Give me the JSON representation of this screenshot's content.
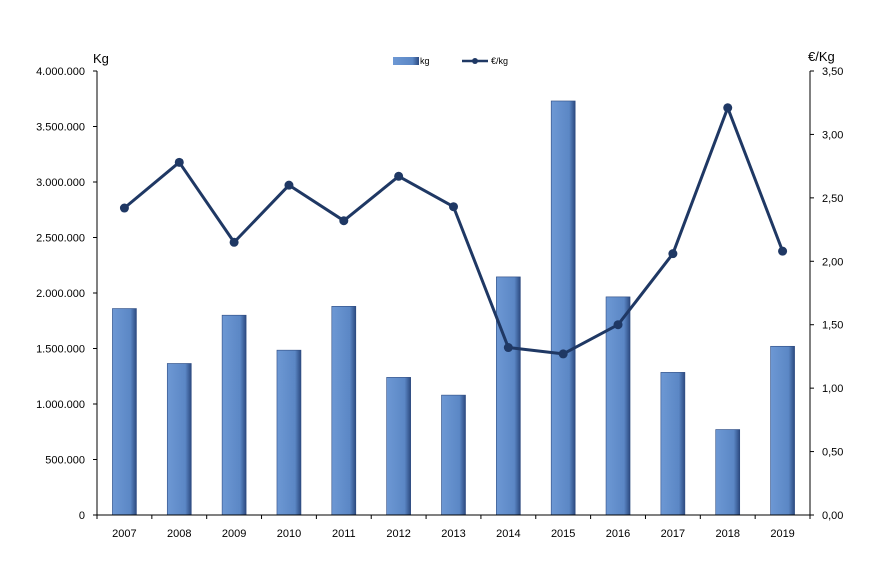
{
  "chart_data": {
    "type": "bar",
    "categories": [
      "2007",
      "2008",
      "2009",
      "2010",
      "2011",
      "2012",
      "2013",
      "2014",
      "2015",
      "2016",
      "2017",
      "2018",
      "2019"
    ],
    "series": [
      {
        "name": "kg",
        "type": "bar",
        "axis": "left",
        "values": [
          1860000,
          1365000,
          1800000,
          1485000,
          1880000,
          1240000,
          1080000,
          2145000,
          3730000,
          1965000,
          1285000,
          770000,
          1520000
        ]
      },
      {
        "name": "€/kg",
        "type": "line",
        "axis": "right",
        "values": [
          2.42,
          2.78,
          2.15,
          2.6,
          2.32,
          2.67,
          2.43,
          1.32,
          1.27,
          1.5,
          2.06,
          3.21,
          2.08
        ]
      }
    ],
    "y_left": {
      "label": "Kg",
      "range": [
        0,
        4000000
      ],
      "ticks": [
        "0",
        "500.000",
        "1.000.000",
        "1.500.000",
        "2.000.000",
        "2.500.000",
        "3.000.000",
        "3.500.000",
        "4.000.000"
      ]
    },
    "y_right": {
      "label": "€/Kg",
      "range": [
        0,
        3.5
      ],
      "ticks": [
        "0,00",
        "0,50",
        "1,00",
        "1,50",
        "2,00",
        "2,50",
        "3,00",
        "3,50"
      ]
    },
    "legend": {
      "position": "top-center"
    },
    "grid": false,
    "colors": {
      "bar": "#5b87c5",
      "bar_dark": "#2c4a80",
      "line": "#1f3864"
    }
  }
}
